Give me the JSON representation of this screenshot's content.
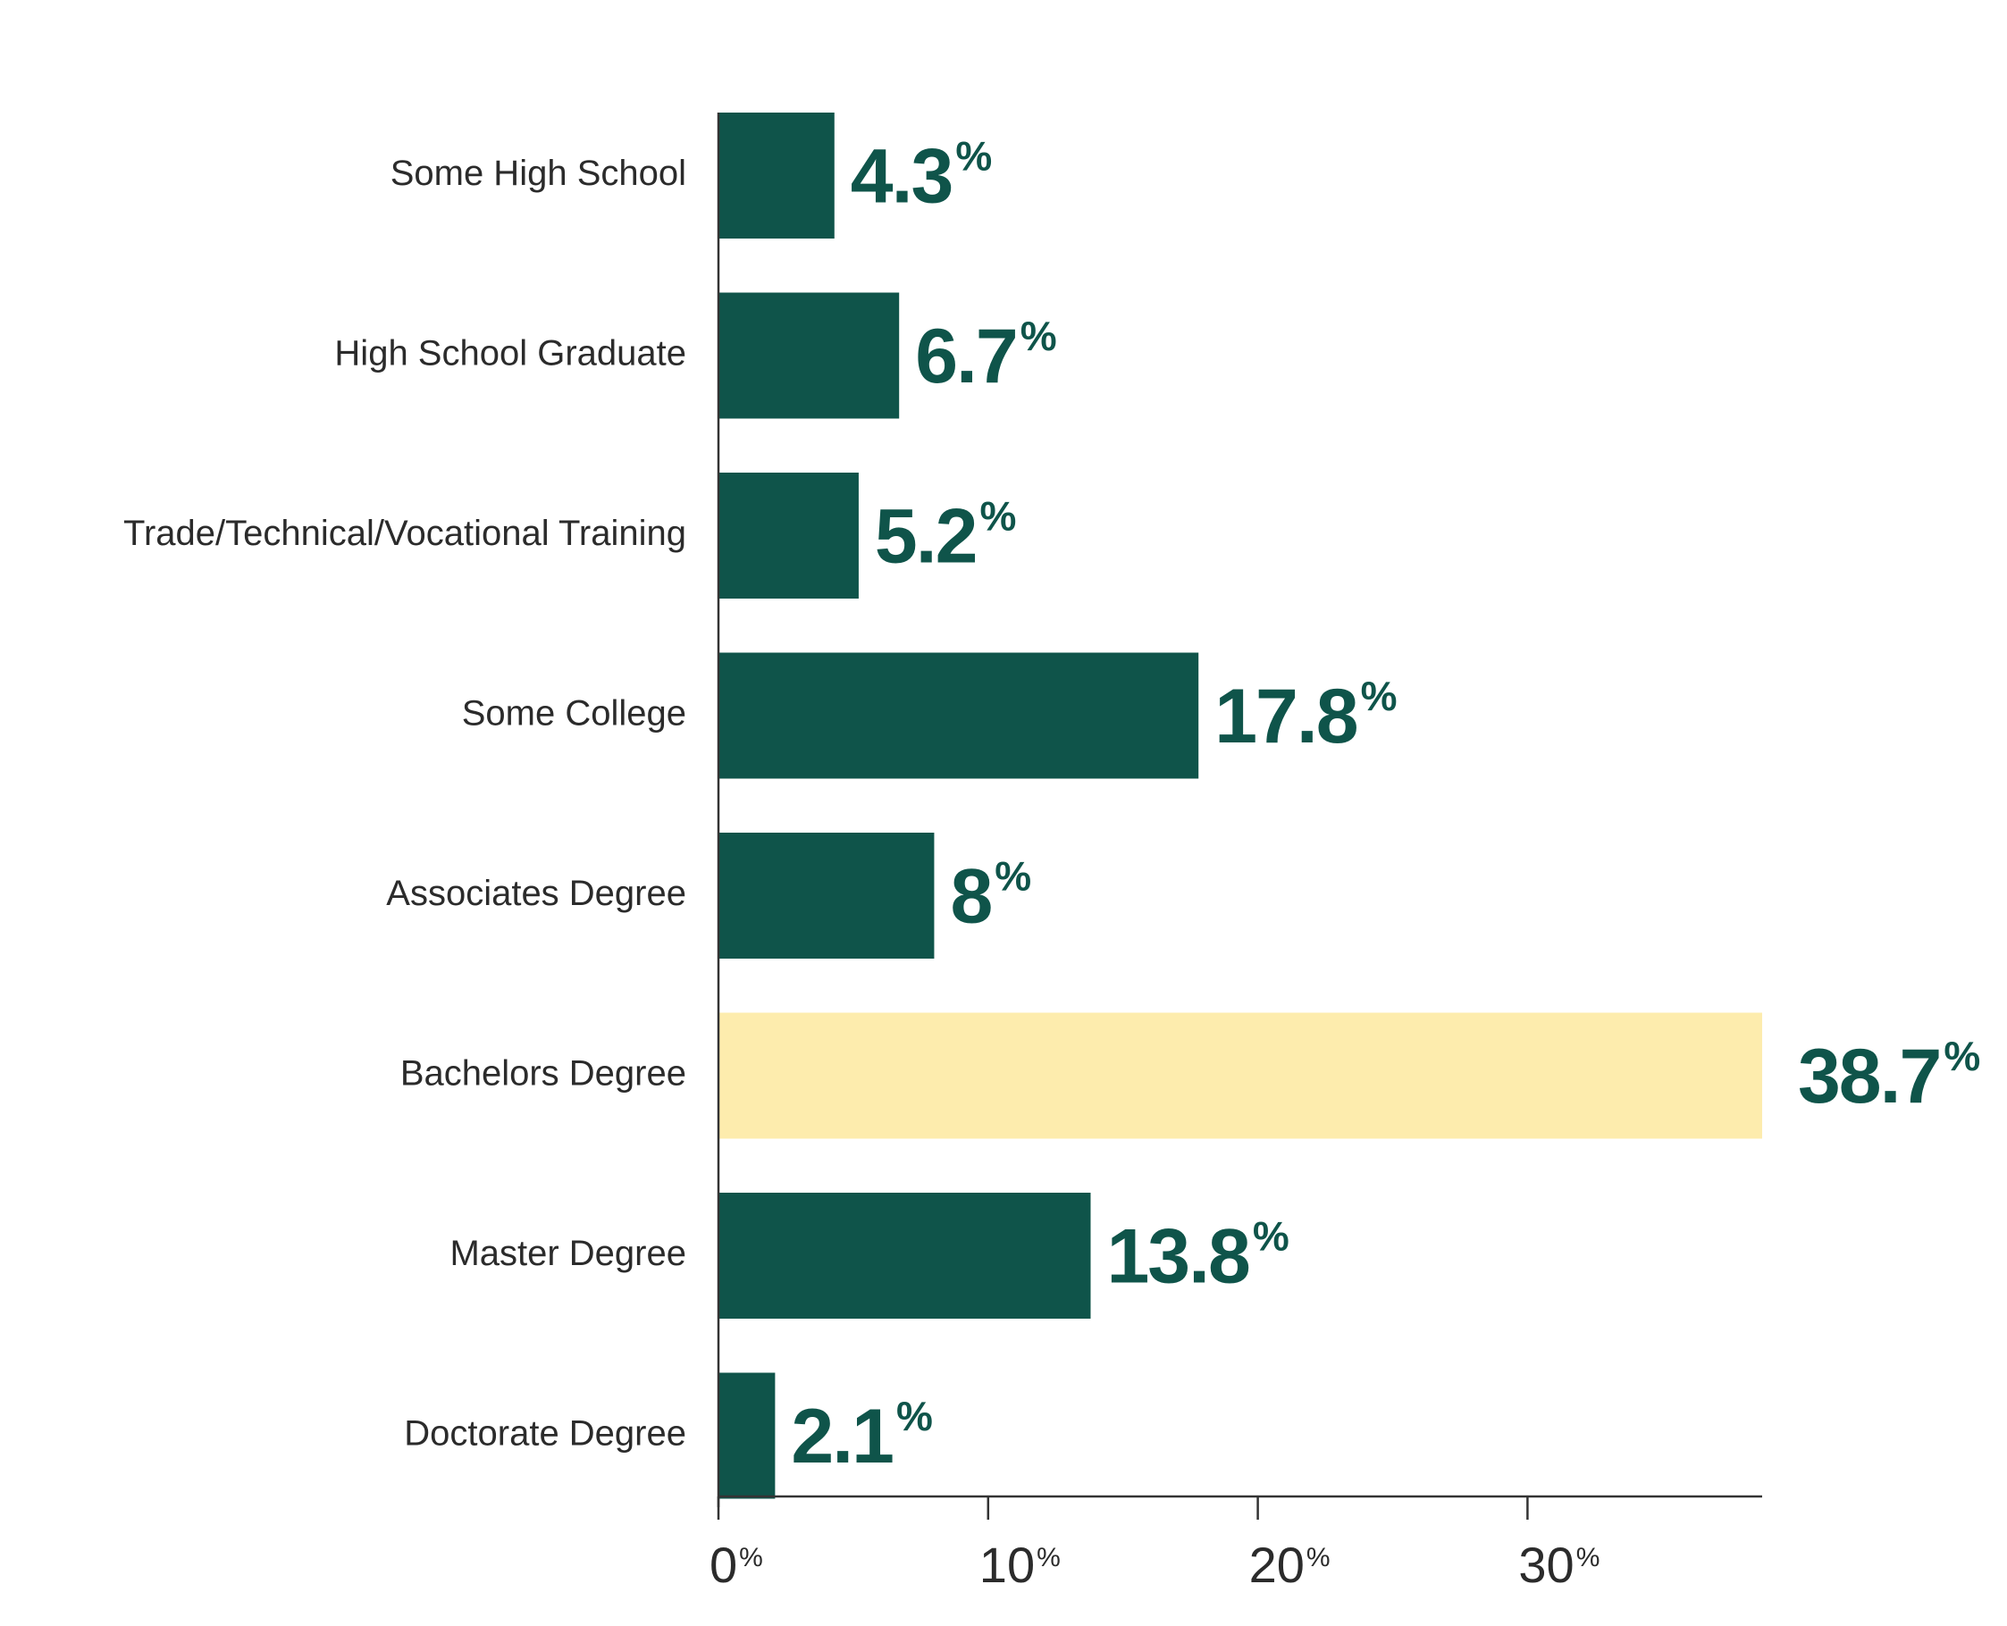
{
  "chart_data": {
    "type": "bar",
    "orientation": "horizontal",
    "categories": [
      "Some High School",
      "High School Graduate",
      "Trade/Technical/Vocational Training",
      "Some College",
      "Associates Degree",
      "Bachelors Degree",
      "Master Degree",
      "Doctorate Degree"
    ],
    "values": [
      4.3,
      6.7,
      5.2,
      17.8,
      8,
      38.7,
      13.8,
      2.1
    ],
    "value_labels": [
      "4.3",
      "6.7",
      "5.2",
      "17.8",
      "8",
      "38.7",
      "13.8",
      "2.1"
    ],
    "value_suffix": "%",
    "highlight_index": 5,
    "xlim": [
      0,
      38.7
    ],
    "x_ticks": [
      {
        "value": 0,
        "label": "0",
        "suffix": "%"
      },
      {
        "value": 10,
        "label": "10",
        "suffix": "%"
      },
      {
        "value": 20,
        "label": "20",
        "suffix": "%"
      },
      {
        "value": 30,
        "label": "30",
        "suffix": "%"
      }
    ],
    "grid": false,
    "title": "",
    "xlabel": "",
    "ylabel": "",
    "colors": {
      "bar": "#0f544a",
      "highlight_bar": "#fdecad",
      "value_label": "#0f544a",
      "axis": "#333333",
      "text": "#2b2b2b"
    }
  }
}
